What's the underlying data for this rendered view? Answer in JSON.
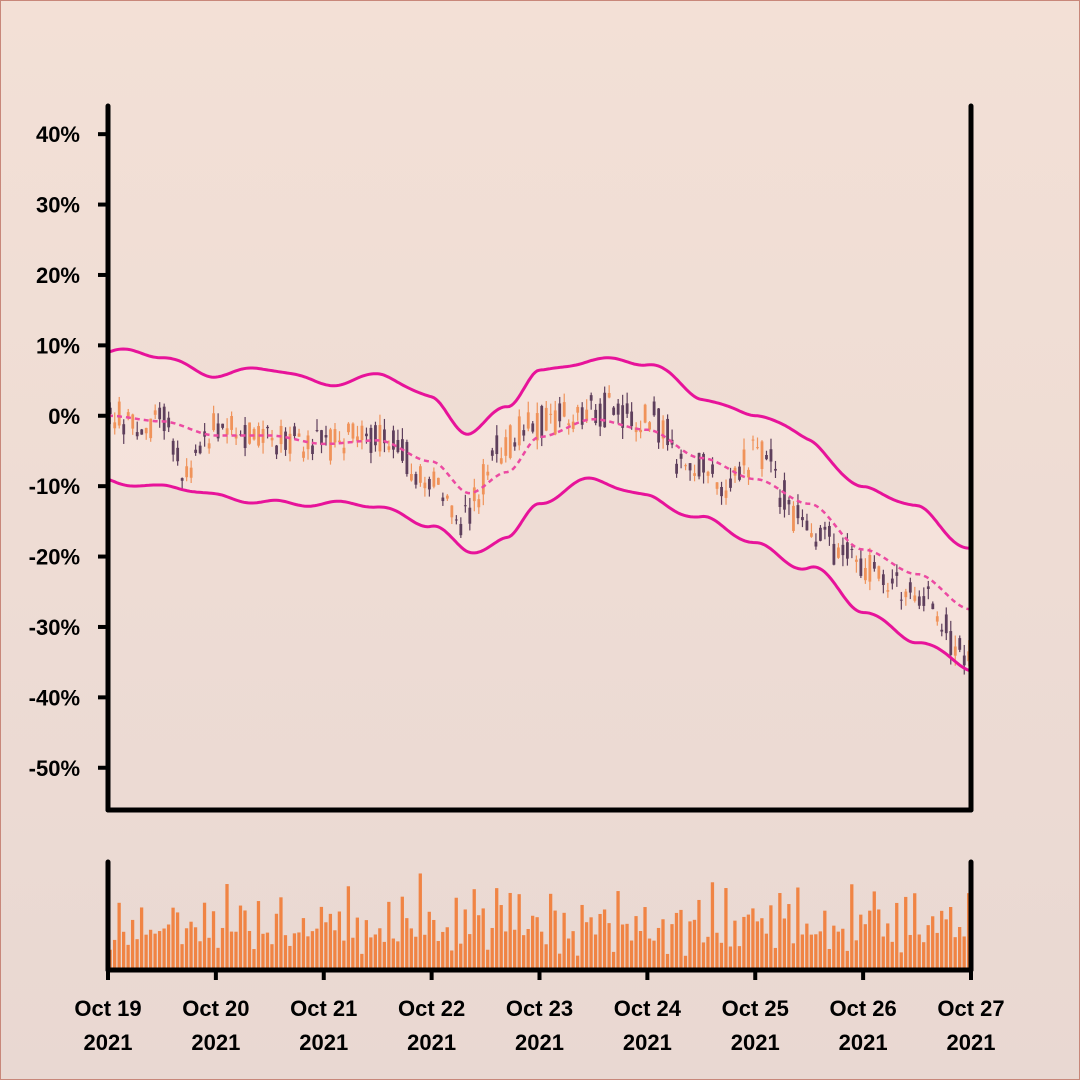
{
  "chart_data": {
    "type": "candlestick",
    "title": "",
    "xlabel": "",
    "ylabel": "",
    "y_unit": "%",
    "ylim": [
      -56,
      44
    ],
    "y_ticks": [
      "40%",
      "30%",
      "20%",
      "10%",
      "0%",
      "-10%",
      "-20%",
      "-30%",
      "-40%",
      "-50%"
    ],
    "y_tick_values": [
      40,
      30,
      20,
      10,
      0,
      -10,
      -20,
      -30,
      -40,
      -50
    ],
    "x_ticks": [
      {
        "line1": "Oct 19",
        "line2": "2021"
      },
      {
        "line1": "Oct 20",
        "line2": "2021"
      },
      {
        "line1": "Oct 21",
        "line2": "2021"
      },
      {
        "line1": "Oct 22",
        "line2": "2021"
      },
      {
        "line1": "Oct 23",
        "line2": "2021"
      },
      {
        "line1": "Oct 24",
        "line2": "2021"
      },
      {
        "line1": "Oct 25",
        "line2": "2021"
      },
      {
        "line1": "Oct 26",
        "line2": "2021"
      },
      {
        "line1": "Oct 27",
        "line2": "2021"
      }
    ],
    "x_range_days": [
      0,
      8
    ],
    "bar_interval_hours": 1,
    "grid": false,
    "legend": "none",
    "close_path": [
      {
        "day": 0.0,
        "value": 0
      },
      {
        "day": 0.5,
        "value": -1
      },
      {
        "day": 0.7,
        "value": -7
      },
      {
        "day": 1.0,
        "value": -2
      },
      {
        "day": 1.5,
        "value": -3
      },
      {
        "day": 2.0,
        "value": -4
      },
      {
        "day": 2.5,
        "value": -3
      },
      {
        "day": 3.0,
        "value": -9
      },
      {
        "day": 3.3,
        "value": -15
      },
      {
        "day": 3.6,
        "value": -5
      },
      {
        "day": 4.0,
        "value": -1
      },
      {
        "day": 4.5,
        "value": 1
      },
      {
        "day": 5.0,
        "value": 0
      },
      {
        "day": 5.4,
        "value": -7
      },
      {
        "day": 5.8,
        "value": -10
      },
      {
        "day": 6.0,
        "value": -5
      },
      {
        "day": 6.5,
        "value": -17
      },
      {
        "day": 7.0,
        "value": -21
      },
      {
        "day": 7.5,
        "value": -25
      },
      {
        "day": 7.85,
        "value": -32
      },
      {
        "day": 8.0,
        "value": -34
      }
    ],
    "moving_average": [
      {
        "day": 0.0,
        "value": 0
      },
      {
        "day": 0.5,
        "value": -0.8
      },
      {
        "day": 1.0,
        "value": -2.8
      },
      {
        "day": 1.5,
        "value": -2.8
      },
      {
        "day": 2.0,
        "value": -4
      },
      {
        "day": 2.5,
        "value": -3.5
      },
      {
        "day": 3.0,
        "value": -6.5
      },
      {
        "day": 3.35,
        "value": -11
      },
      {
        "day": 3.7,
        "value": -8
      },
      {
        "day": 4.0,
        "value": -3
      },
      {
        "day": 4.5,
        "value": -0.5
      },
      {
        "day": 5.0,
        "value": -2
      },
      {
        "day": 5.5,
        "value": -6
      },
      {
        "day": 6.0,
        "value": -9
      },
      {
        "day": 6.5,
        "value": -12.5
      },
      {
        "day": 7.0,
        "value": -19
      },
      {
        "day": 7.5,
        "value": -22.5
      },
      {
        "day": 8.0,
        "value": -27.5
      }
    ],
    "band_width": 9,
    "volume_relative": [
      0.42,
      0.55,
      0.78,
      0.6,
      0.35,
      0.7,
      0.5,
      0.64,
      0.3,
      0.85,
      0.52,
      0.66
    ],
    "colors": {
      "up_candle": "#f0935a",
      "down_candle": "#5e3f5c",
      "bollinger": "#e7139a",
      "moving_average": "#ec4aa2",
      "band_fill": "#f7e4de",
      "volume": "#f08444",
      "axis": "#000000"
    }
  }
}
